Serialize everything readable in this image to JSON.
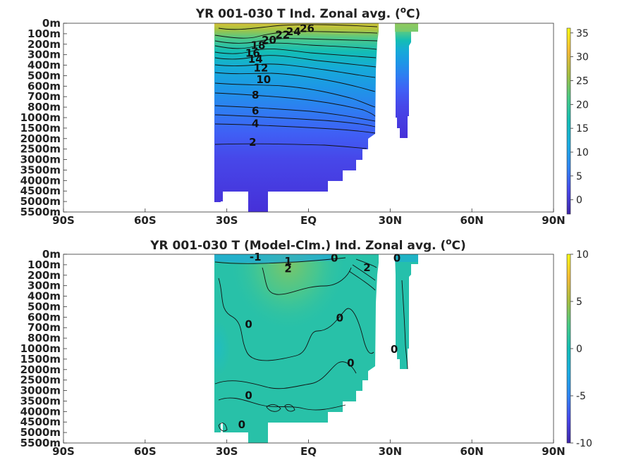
{
  "chart_data": [
    {
      "type": "heatmap",
      "title_main": "YR 001-030 T Ind. Zonal avg. (",
      "title_sup": "o",
      "title_end": "C)",
      "x_tick_labels": [
        "90S",
        "60S",
        "30S",
        "EQ",
        "30N",
        "60N",
        "90N"
      ],
      "x_tick_values": [
        -90,
        -60,
        -30,
        0,
        30,
        60,
        90
      ],
      "xlim": [
        -90,
        90
      ],
      "y_tick_labels": [
        "0m",
        "100m",
        "200m",
        "300m",
        "400m",
        "500m",
        "600m",
        "700m",
        "800m",
        "1000m",
        "1500m",
        "2000m",
        "2500m",
        "3000m",
        "3500m",
        "4000m",
        "4500m",
        "5000m",
        "5500m"
      ],
      "colorbar": {
        "range": [
          -3,
          36
        ],
        "ticks": [
          0,
          5,
          10,
          15,
          20,
          25,
          30,
          35
        ],
        "tick_labels": [
          "0",
          "5",
          "10",
          "15",
          "20",
          "25",
          "30",
          "35"
        ]
      },
      "colormap": [
        "#3e26a8",
        "#4746eb",
        "#2f85f4",
        "#1bade3",
        "#13beb7",
        "#48cb86",
        "#a5be41",
        "#f5ba36",
        "#f9fb15"
      ],
      "contour_labels": [
        {
          "text": "26",
          "lat": -0.5,
          "depth_index": 0.45
        },
        {
          "text": "24",
          "lat": -5.5,
          "depth_index": 0.75
        },
        {
          "text": "22",
          "lat": -9.5,
          "depth_index": 1.05
        },
        {
          "text": "20",
          "lat": -14.5,
          "depth_index": 1.55
        },
        {
          "text": "18",
          "lat": -18.5,
          "depth_index": 2.05
        },
        {
          "text": "16",
          "lat": -20.5,
          "depth_index": 2.8
        },
        {
          "text": "14",
          "lat": -19.5,
          "depth_index": 3.35
        },
        {
          "text": "12",
          "lat": -17.5,
          "depth_index": 4.2
        },
        {
          "text": "10",
          "lat": -16.5,
          "depth_index": 5.3
        },
        {
          "text": "8",
          "lat": -19.5,
          "depth_index": 6.8
        },
        {
          "text": "6",
          "lat": -19.5,
          "depth_index": 8.3
        },
        {
          "text": "4",
          "lat": -19.5,
          "depth_index": 9.5
        },
        {
          "text": "2",
          "lat": -20.5,
          "depth_index": 11.3
        }
      ]
    },
    {
      "type": "heatmap",
      "title_main": "YR 001-030 T (Model-Clm.) Ind. Zonal avg. (",
      "title_sup": "o",
      "title_end": "C)",
      "x_tick_labels": [
        "90S",
        "60S",
        "30S",
        "EQ",
        "30N",
        "60N",
        "90N"
      ],
      "x_tick_values": [
        -90,
        -60,
        -30,
        0,
        30,
        60,
        90
      ],
      "xlim": [
        -90,
        90
      ],
      "y_tick_labels": [
        "0m",
        "100m",
        "200m",
        "300m",
        "400m",
        "500m",
        "600m",
        "700m",
        "800m",
        "1000m",
        "1500m",
        "2000m",
        "2500m",
        "3000m",
        "3500m",
        "4000m",
        "4500m",
        "5000m",
        "5500m"
      ],
      "colorbar": {
        "range": [
          -10,
          10
        ],
        "ticks": [
          -10,
          -5,
          0,
          5,
          10
        ],
        "tick_labels": [
          "-10",
          "-5",
          "0",
          "5",
          "10"
        ]
      },
      "colormap": [
        "#3e26a8",
        "#4746eb",
        "#2f85f4",
        "#1bade3",
        "#13beb7",
        "#48cb86",
        "#a5be41",
        "#f5ba36",
        "#f9fb15"
      ],
      "contour_labels": [
        {
          "text": "-1",
          "lat": -19.5,
          "depth_index": 0.2
        },
        {
          "text": "1",
          "lat": -7.5,
          "depth_index": 0.6
        },
        {
          "text": "2",
          "lat": -7.5,
          "depth_index": 1.3
        },
        {
          "text": "0",
          "lat": 9.5,
          "depth_index": 0.3
        },
        {
          "text": "2",
          "lat": 21.5,
          "depth_index": 1.2
        },
        {
          "text": "0",
          "lat": 32.5,
          "depth_index": 0.3
        },
        {
          "text": "0",
          "lat": -22,
          "depth_index": 6.6
        },
        {
          "text": "0",
          "lat": 11.5,
          "depth_index": 6.0
        },
        {
          "text": "0",
          "lat": 31.5,
          "depth_index": 9.0
        },
        {
          "text": "0",
          "lat": 15.5,
          "depth_index": 10.3
        },
        {
          "text": "0",
          "lat": -22,
          "depth_index": 13.4
        },
        {
          "text": "0",
          "lat": -24.5,
          "depth_index": 16.2
        }
      ]
    }
  ]
}
